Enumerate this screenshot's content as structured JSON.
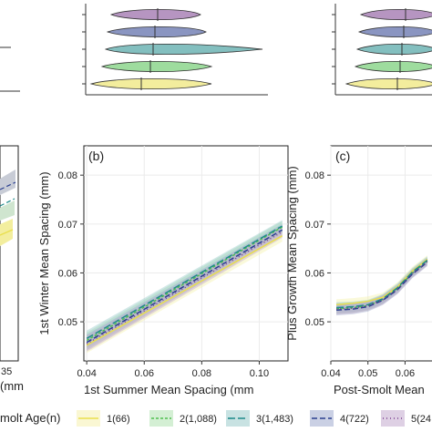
{
  "panel_b_label": "(b)",
  "panel_c_label": "(c)",
  "left_axis_fragment": "35",
  "left_xlabel_fragment": "(mm",
  "legend": {
    "title": "molt Age(n)",
    "entries": [
      {
        "label": "1(66)",
        "color": "#e9df4c",
        "dash": "solid"
      },
      {
        "label": "2(1,088)",
        "color": "#4fbf4f",
        "dash": "3,2"
      },
      {
        "label": "3(1,483)",
        "color": "#1e8a8a",
        "dash": "8,3"
      },
      {
        "label": "4(722)",
        "color": "#2a3f8f",
        "dash": "6,3"
      },
      {
        "label": "5(24",
        "color": "#7a3f8f",
        "dash": "1,3"
      }
    ]
  },
  "chart_data": [
    {
      "type": "line",
      "panel": "(b)",
      "xlabel": "1st Summer Mean Spacing (mm",
      "ylabel": "1st Winter Mean Spacing (mm)",
      "xlim": [
        0.039,
        0.11
      ],
      "ylim": [
        0.042,
        0.086
      ],
      "xticks": [
        "0.04",
        "0.06",
        "0.08",
        "0.10"
      ],
      "yticks": [
        "0.05",
        "0.06",
        "0.07",
        "0.08"
      ],
      "grid": true,
      "series": [
        {
          "name": "1(66)",
          "x": [
            0.04,
            0.108
          ],
          "y": [
            0.0452,
            0.0676
          ]
        },
        {
          "name": "2(1,088)",
          "x": [
            0.04,
            0.108
          ],
          "y": [
            0.0462,
            0.0694
          ]
        },
        {
          "name": "3(1,483)",
          "x": [
            0.04,
            0.108
          ],
          "y": [
            0.0466,
            0.0696
          ]
        },
        {
          "name": "4(722)",
          "x": [
            0.04,
            0.108
          ],
          "y": [
            0.0458,
            0.0688
          ]
        },
        {
          "name": "5(24",
          "x": [
            0.04,
            0.108
          ],
          "y": [
            0.0455,
            0.0684
          ]
        }
      ]
    },
    {
      "type": "line",
      "panel": "(c)",
      "xlabel": "Post-Smolt Mean",
      "ylabel": "Plus Growth Mean Spacing (mm)",
      "xlim": [
        0.04,
        0.068
      ],
      "ylim": [
        0.042,
        0.086
      ],
      "xticks": [
        "0.04",
        "0.05",
        "0.06"
      ],
      "yticks": [
        "0.05",
        "0.06",
        "0.07",
        "0.08"
      ],
      "grid": true,
      "series": [
        {
          "name": "1(66)",
          "x": [
            0.0415,
            0.046,
            0.05,
            0.054,
            0.058,
            0.062,
            0.066
          ],
          "y": [
            0.0535,
            0.0538,
            0.0542,
            0.055,
            0.0572,
            0.0604,
            0.0628
          ]
        },
        {
          "name": "2(1,088)",
          "x": [
            0.0415,
            0.046,
            0.05,
            0.054,
            0.058,
            0.062,
            0.066
          ],
          "y": [
            0.0527,
            0.0529,
            0.0533,
            0.0546,
            0.0568,
            0.06,
            0.0624
          ]
        },
        {
          "name": "3(1,483)",
          "x": [
            0.0415,
            0.046,
            0.05,
            0.054,
            0.058,
            0.062,
            0.066
          ],
          "y": [
            0.0529,
            0.0531,
            0.0535,
            0.0547,
            0.057,
            0.0602,
            0.0626
          ]
        },
        {
          "name": "4(722)",
          "x": [
            0.0415,
            0.046,
            0.05,
            0.054,
            0.058,
            0.062,
            0.066
          ],
          "y": [
            0.0524,
            0.0526,
            0.0531,
            0.0544,
            0.0566,
            0.0598,
            0.0622
          ]
        },
        {
          "name": "5(24",
          "x": [
            0.0415,
            0.046,
            0.05,
            0.054,
            0.058,
            0.062,
            0.066
          ],
          "y": [
            0.0526,
            0.0528,
            0.0533,
            0.0545,
            0.0567,
            0.0599,
            0.0623
          ]
        }
      ]
    }
  ]
}
